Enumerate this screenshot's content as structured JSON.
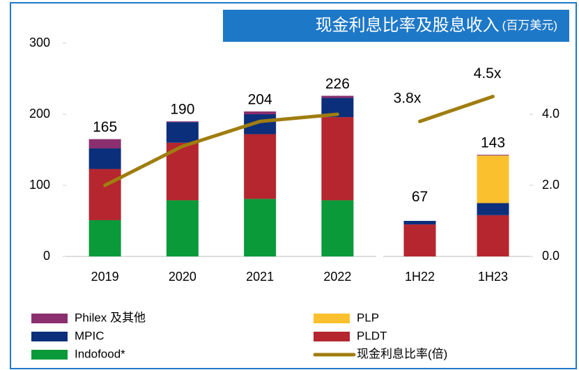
{
  "title": "现金利息比率及股息收入",
  "unit": "(百万美元)",
  "chart_data": [
    {
      "type": "bar",
      "categories": [
        "2019",
        "2020",
        "2021",
        "2022"
      ],
      "ylim": [
        0,
        300
      ],
      "yticks": [
        0,
        100,
        200,
        300
      ],
      "y2lim": [
        0,
        6
      ],
      "totals": [
        165,
        190,
        204,
        226
      ],
      "series": [
        {
          "name": "Indofood*",
          "color": "#0a9a3a",
          "values": [
            51,
            79,
            81,
            79
          ]
        },
        {
          "name": "PLDT",
          "color": "#b5262e",
          "values": [
            72,
            81,
            91,
            117
          ]
        },
        {
          "name": "MPIC",
          "color": "#0b2f7a",
          "values": [
            29,
            29,
            28,
            27
          ]
        },
        {
          "name": "Philex 及其他",
          "color": "#8b2f6e",
          "values": [
            13,
            1,
            4,
            3
          ]
        },
        {
          "name": "现金利息比率(倍)",
          "color": "#a07d10",
          "type": "line",
          "axis": "y2",
          "values": [
            2.0,
            3.1,
            3.8,
            4.0
          ]
        }
      ]
    },
    {
      "type": "bar",
      "categories": [
        "1H22",
        "1H23"
      ],
      "ylim": [
        0,
        300
      ],
      "y2lim": [
        0,
        6
      ],
      "y2ticks": [
        {
          "value": 0,
          "label": "0.0"
        },
        {
          "value": 2,
          "label": "2.0"
        },
        {
          "value": 4,
          "label": "4.0"
        }
      ],
      "totals": [
        67,
        143
      ],
      "series": [
        {
          "name": "PLDT",
          "color": "#b5262e",
          "values": [
            45,
            58
          ]
        },
        {
          "name": "MPIC",
          "color": "#0b2f7a",
          "values": [
            5,
            17
          ]
        },
        {
          "name": "PLP",
          "color": "#fbc02d",
          "values": [
            0,
            67
          ]
        },
        {
          "name": "Philex 及其他",
          "color": "#8b2f6e",
          "values": [
            0,
            1
          ]
        },
        {
          "name": "现金利息比率(倍)",
          "color": "#a07d10",
          "type": "line",
          "axis": "y2",
          "values": [
            3.8,
            4.5
          ],
          "value_labels": [
            "3.8x",
            "4.5x"
          ]
        }
      ]
    }
  ]
}
